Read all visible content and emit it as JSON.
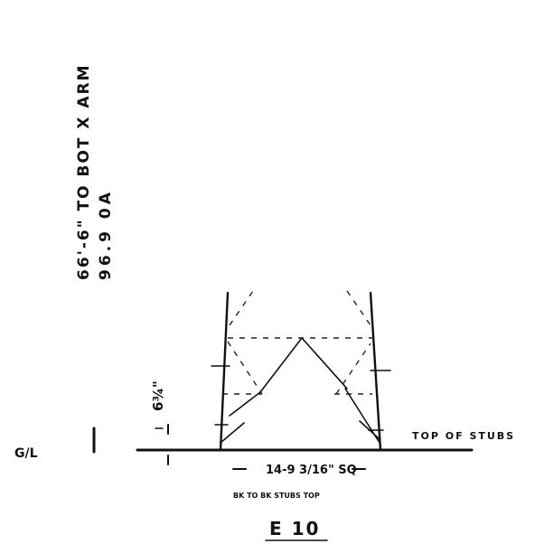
{
  "drawing": {
    "vertical_note_line1": "66'-6\" TO BOT X ARM",
    "vertical_note_line2": "96.9 0A",
    "stub_height_note": "6¾\"",
    "ground_label": "G/L",
    "top_of_stubs_label": "TOP OF STUBS",
    "base_dimension": "14-9 3/16\" SQ",
    "base_dimension_note": "BK TO BK STUBS TOP",
    "sheet_id": "E 10"
  }
}
